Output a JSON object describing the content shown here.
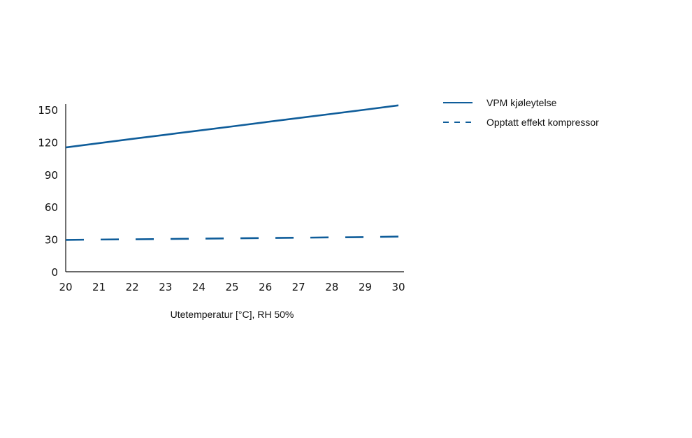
{
  "chart_data": {
    "type": "line",
    "title": "",
    "xlabel": "Utetemperatur [°C], RH 50%",
    "ylabel": "",
    "x": [
      20,
      21,
      22,
      23,
      24,
      25,
      26,
      27,
      28,
      29,
      30
    ],
    "xlim": [
      20,
      30
    ],
    "ylim": [
      0,
      150
    ],
    "xticks": [
      "20",
      "21",
      "22",
      "23",
      "24",
      "25",
      "26",
      "27",
      "28",
      "29",
      "30"
    ],
    "yticks": [
      "0",
      "30",
      "60",
      "90",
      "120",
      "150"
    ],
    "grid": false,
    "legend_position": "right",
    "series": [
      {
        "name": "VPM kjøleytelse",
        "style": "solid",
        "color": "#0f5d9a",
        "values": [
          115,
          119,
          123,
          126.8,
          130.7,
          134.5,
          138.4,
          142.3,
          146.1,
          150,
          154
        ]
      },
      {
        "name": "Opptatt effekt kompressor",
        "style": "dashed",
        "color": "#0f5d9a",
        "values": [
          29.5,
          29.8,
          30,
          30.3,
          30.6,
          30.9,
          31.2,
          31.5,
          31.8,
          32.1,
          32.5
        ]
      }
    ]
  }
}
